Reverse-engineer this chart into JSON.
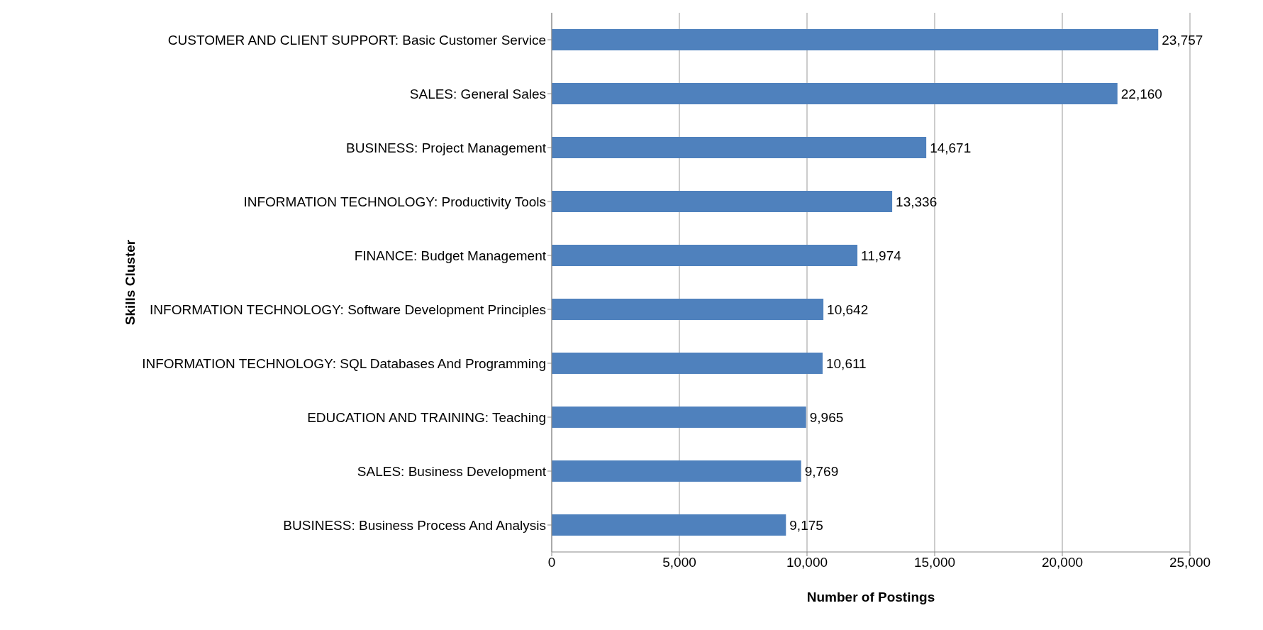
{
  "chart_data": {
    "type": "bar",
    "orientation": "horizontal",
    "xlabel": "Number of Postings",
    "ylabel": "Skills Cluster",
    "categories": [
      "CUSTOMER AND CLIENT SUPPORT: Basic Customer Service",
      "SALES: General Sales",
      "BUSINESS: Project Management",
      "INFORMATION TECHNOLOGY: Productivity Tools",
      "FINANCE: Budget Management",
      "INFORMATION TECHNOLOGY: Software Development Principles",
      "INFORMATION TECHNOLOGY: SQL Databases And Programming",
      "EDUCATION AND TRAINING: Teaching",
      "SALES: Business Development",
      "BUSINESS: Business Process And Analysis"
    ],
    "values": [
      23757,
      22160,
      14671,
      13336,
      11974,
      10642,
      10611,
      9965,
      9769,
      9175
    ],
    "value_labels": [
      "23,757",
      "22,160",
      "14,671",
      "13,336",
      "11,974",
      "10,642",
      "10,611",
      "9,965",
      "9,769",
      "9,175"
    ],
    "color": "#4f81bd",
    "xlim": [
      0,
      25000
    ],
    "xticks": [
      0,
      {
        "value": 5000,
        "label": "5,000"
      },
      {
        "value": 10000,
        "label": "10,000"
      },
      {
        "value": 15000,
        "label": "15,000"
      },
      {
        "value": 20000,
        "label": "20,000"
      },
      {
        "value": 25000,
        "label": "25,000"
      }
    ],
    "grid": "x"
  }
}
